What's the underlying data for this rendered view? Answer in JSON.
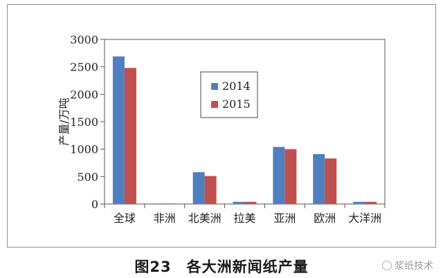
{
  "caption": "图23　各大洲新闻纸产量",
  "watermark": "浆纸技术",
  "chart_data": {
    "type": "bar",
    "categories": [
      "全球",
      "非洲",
      "北美洲",
      "拉美",
      "亚洲",
      "欧洲",
      "大洋洲"
    ],
    "series": [
      {
        "name": "2014",
        "color": "#4f7fc0",
        "values": [
          2690,
          10,
          580,
          40,
          1040,
          910,
          40
        ]
      },
      {
        "name": "2015",
        "color": "#c0504d",
        "values": [
          2480,
          10,
          510,
          40,
          1000,
          830,
          40
        ]
      }
    ],
    "ylabel": "产量/万吨",
    "ylim": [
      0,
      3000
    ],
    "yticks": [
      0,
      500,
      1000,
      1500,
      2000,
      2500,
      3000
    ],
    "ytick_labels": [
      "0",
      "500",
      "1000",
      "1500",
      "2000",
      "2500",
      "3000"
    ],
    "grid": false,
    "legend_position": "center"
  }
}
